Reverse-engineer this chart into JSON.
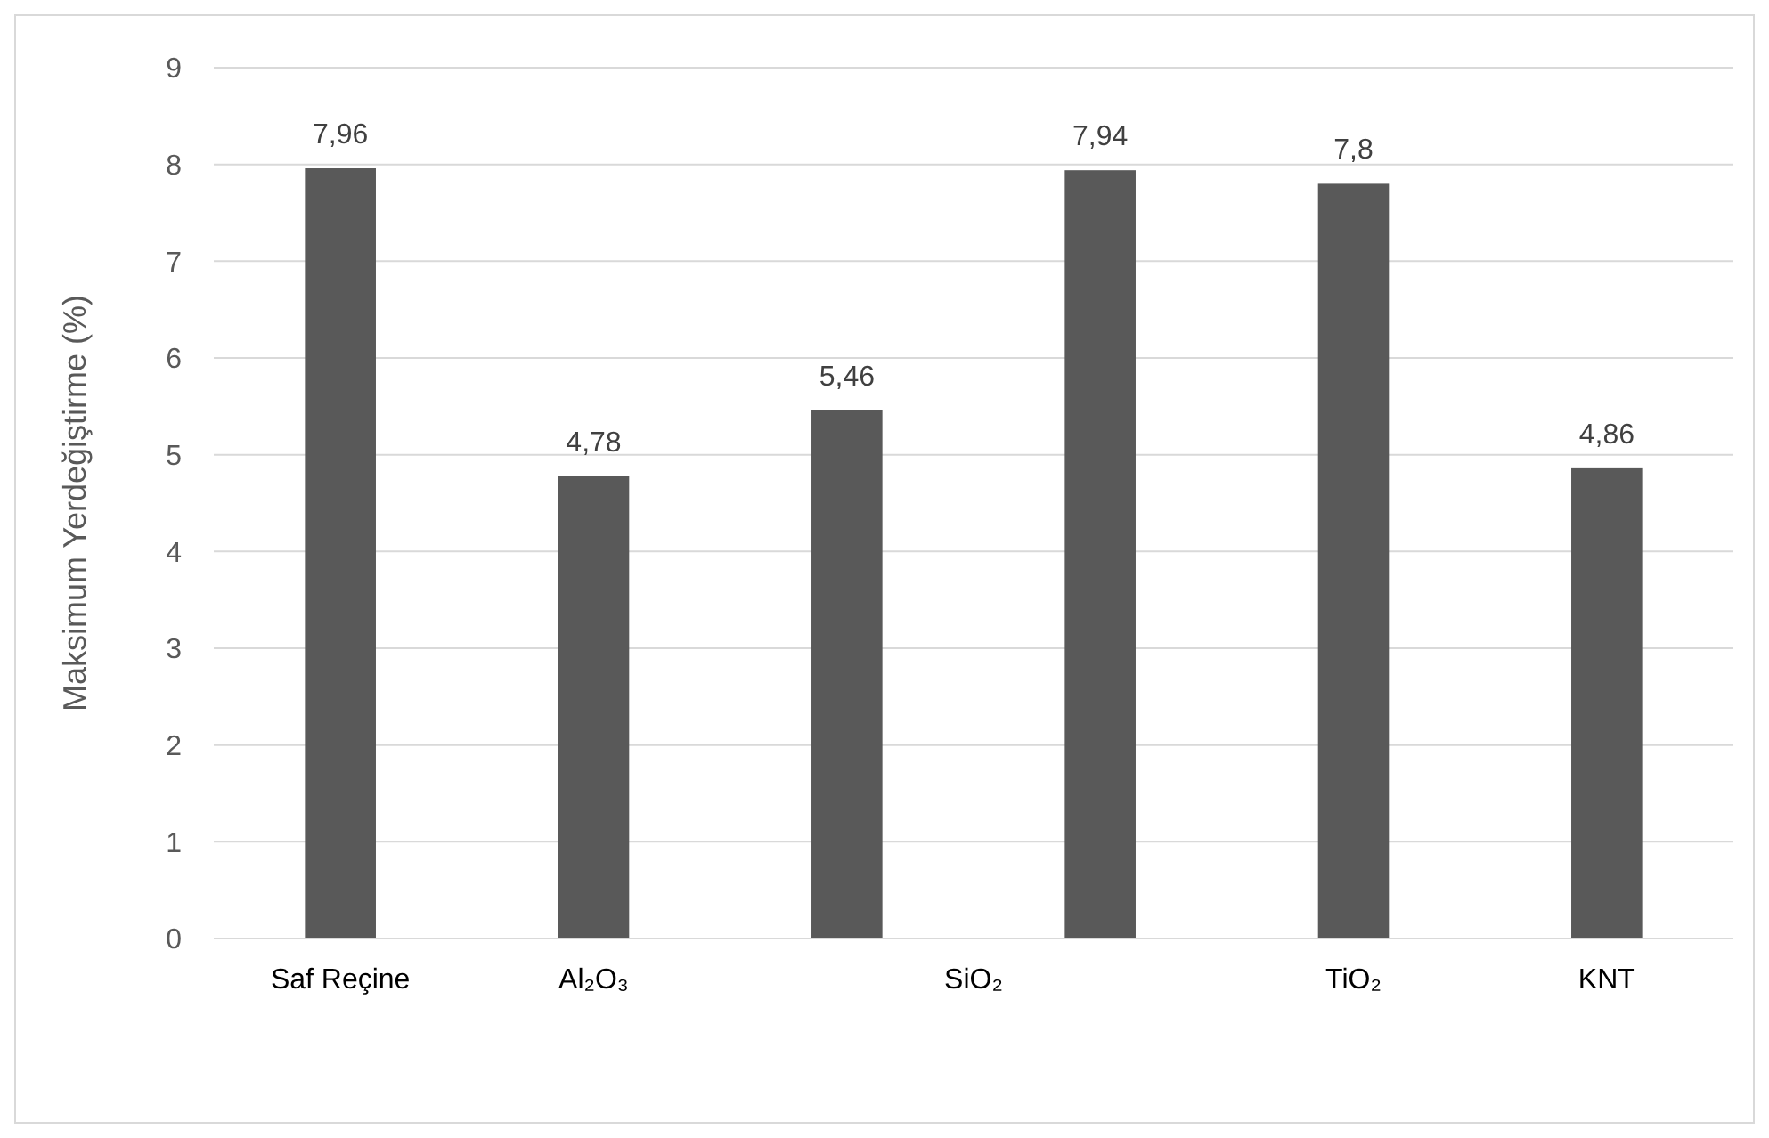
{
  "chart_data": {
    "type": "bar",
    "ylabel": "Maksimum Yerdeğiştirme (%)",
    "categories": [
      "Saf Reçine",
      "Al₂O₃",
      null,
      null,
      "TiO₂",
      "KNT"
    ],
    "values": [
      7.96,
      4.78,
      5.46,
      7.94,
      7.8,
      4.86
    ],
    "value_labels": [
      "7,96",
      "4,78",
      "5,46",
      "7,94",
      "7,8",
      "4,86"
    ],
    "color": "#595959",
    "ylim": [
      0,
      9
    ],
    "yticks": [
      0,
      1,
      2,
      3,
      4,
      5,
      6,
      7,
      8,
      9
    ],
    "grid": "y",
    "annotations": [
      "SiO₂"
    ]
  }
}
